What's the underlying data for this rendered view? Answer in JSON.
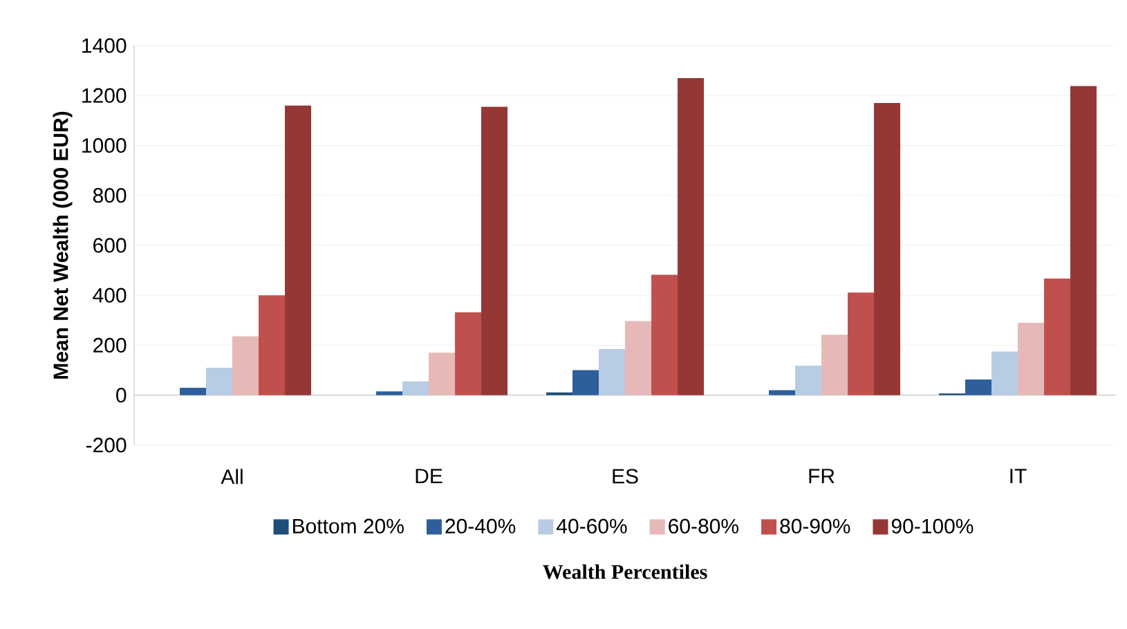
{
  "chart_data": {
    "type": "bar",
    "xlabel": "Wealth Percentiles",
    "ylabel": "Mean Net Wealth (000 EUR)",
    "categories": [
      "All",
      "DE",
      "ES",
      "FR",
      "IT"
    ],
    "series": [
      {
        "name": "Bottom 20%",
        "color": "#1f4e79",
        "values": [
          0,
          0,
          11,
          0,
          7
        ]
      },
      {
        "name": "20-40%",
        "color": "#2e5f9a",
        "values": [
          30,
          15,
          100,
          20,
          63
        ]
      },
      {
        "name": "40-60%",
        "color": "#b8cce4",
        "values": [
          110,
          55,
          185,
          118,
          175
        ]
      },
      {
        "name": "60-80%",
        "color": "#e6b9b8",
        "values": [
          236,
          170,
          297,
          242,
          290
        ]
      },
      {
        "name": "80-90%",
        "color": "#c0504d",
        "values": [
          400,
          332,
          482,
          411,
          467
        ]
      },
      {
        "name": "90-100%",
        "color": "#953735",
        "values": [
          1160,
          1155,
          1270,
          1170,
          1238
        ]
      }
    ],
    "ylim": [
      -200,
      1400
    ],
    "yticks": [
      -200,
      0,
      200,
      400,
      600,
      800,
      1000,
      1200,
      1400
    ],
    "grid": "y",
    "legend": "bottom"
  }
}
